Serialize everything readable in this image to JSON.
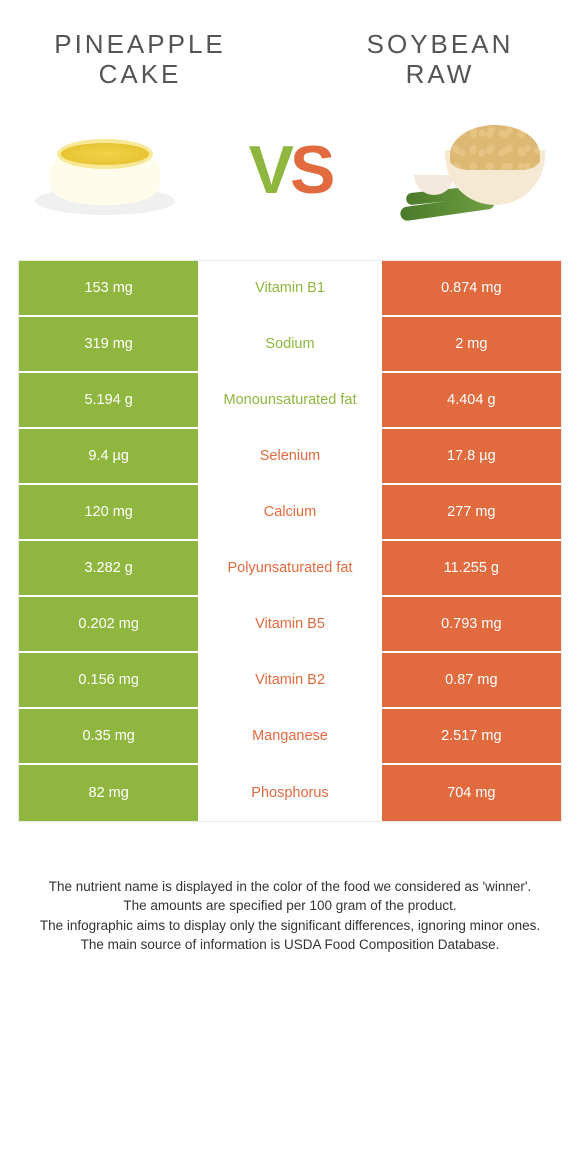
{
  "colors": {
    "left": "#8fb63f",
    "right": "#e26a3f",
    "mid_bg": "#ffffff"
  },
  "header": {
    "left_title": "PINEAPPLE\nCAKE",
    "right_title": "SOYBEAN\nRAW",
    "vs_v": "V",
    "vs_s": "S"
  },
  "rows": [
    {
      "left": "153 mg",
      "label": "Vitamin B1",
      "right": "0.874 mg",
      "winner": "left"
    },
    {
      "left": "319 mg",
      "label": "Sodium",
      "right": "2 mg",
      "winner": "left"
    },
    {
      "left": "5.194 g",
      "label": "Monounsaturated fat",
      "right": "4.404 g",
      "winner": "left"
    },
    {
      "left": "9.4 µg",
      "label": "Selenium",
      "right": "17.8 µg",
      "winner": "right"
    },
    {
      "left": "120 mg",
      "label": "Calcium",
      "right": "277 mg",
      "winner": "right"
    },
    {
      "left": "3.282 g",
      "label": "Polyunsaturated fat",
      "right": "11.255 g",
      "winner": "right"
    },
    {
      "left": "0.202 mg",
      "label": "Vitamin B5",
      "right": "0.793 mg",
      "winner": "right"
    },
    {
      "left": "0.156 mg",
      "label": "Vitamin B2",
      "right": "0.87 mg",
      "winner": "right"
    },
    {
      "left": "0.35 mg",
      "label": "Manganese",
      "right": "2.517 mg",
      "winner": "right"
    },
    {
      "left": "82 mg",
      "label": "Phosphorus",
      "right": "704 mg",
      "winner": "right"
    }
  ],
  "footer": {
    "l1": "The nutrient name is displayed in the color of the food we considered as 'winner'.",
    "l2": "The amounts are specified per 100 gram of the product.",
    "l3": "The infographic aims to display only the significant differences, ignoring minor ones.",
    "l4": "The main source of information is USDA Food Composition Database."
  }
}
